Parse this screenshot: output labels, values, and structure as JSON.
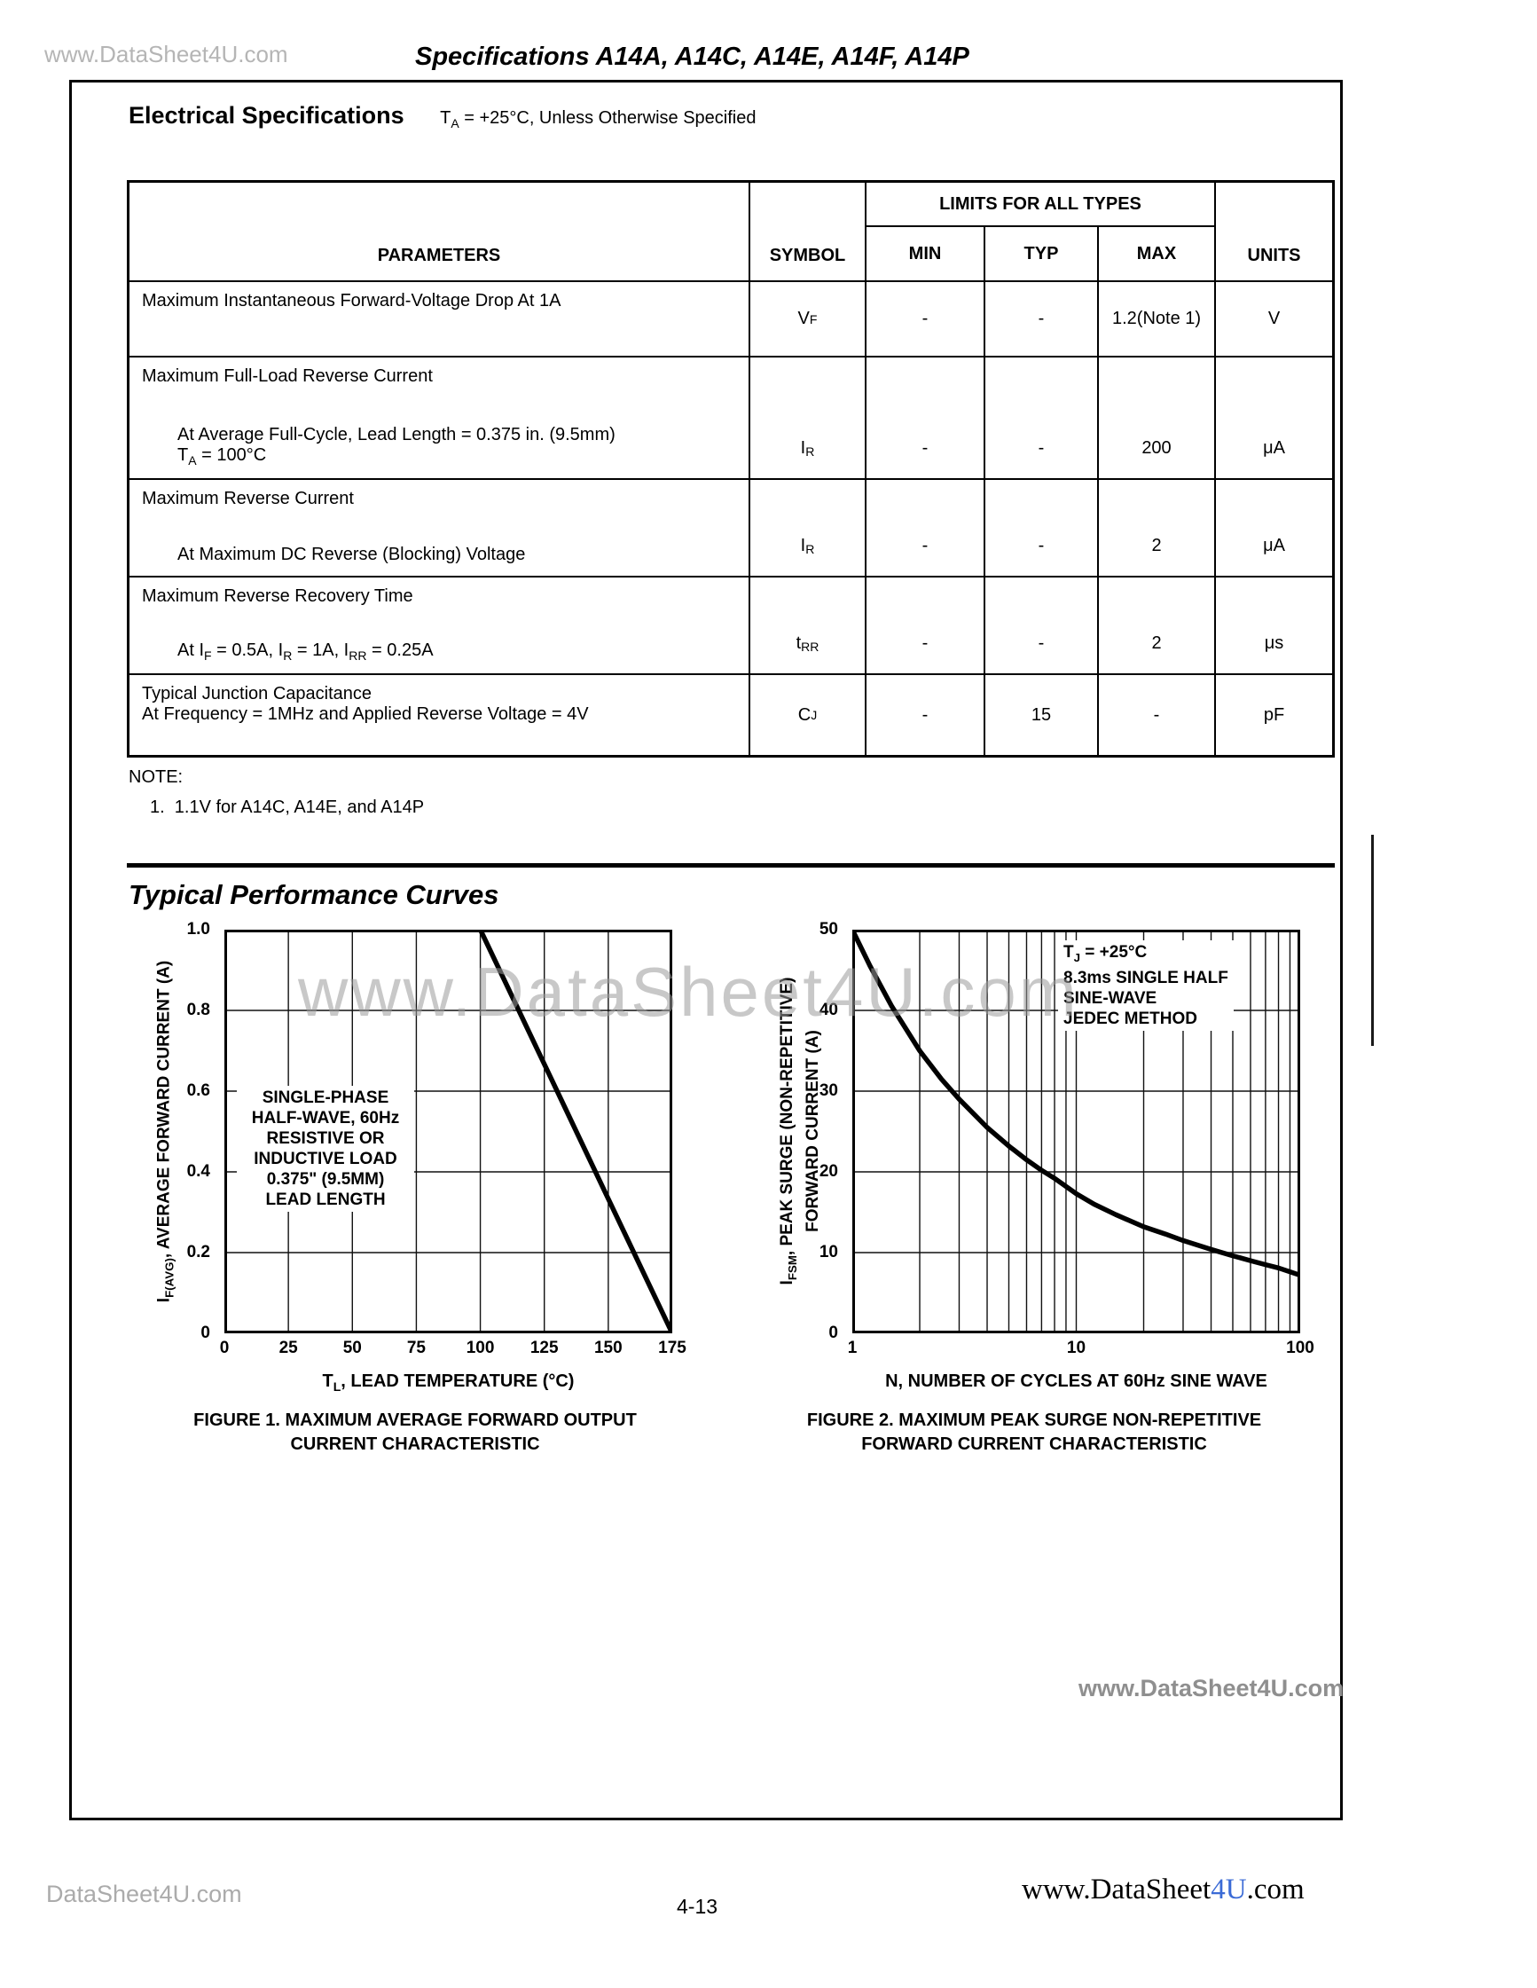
{
  "page": {
    "watermark_top_left": "www.DataSheet4U.com",
    "title": "Specifications A14A, A14C, A14E, A14F, A14P",
    "watermark_center": "www.DataSheet4U.com",
    "watermark_inner": "www.DataSheet4U.com",
    "footer_left": "DataSheet4U.com",
    "footer_right_prefix": "www.DataSheet",
    "footer_right_accent": "4U",
    "footer_right_suffix": ".com",
    "page_number": "4-13"
  },
  "electrical": {
    "heading": "Electrical Specifications",
    "condition": "T~A~ = +25°C, Unless Otherwise Specified",
    "table": {
      "col_parameters": "PARAMETERS",
      "col_symbol": "SYMBOL",
      "col_limits": "LIMITS FOR ALL TYPES",
      "col_min": "MIN",
      "col_typ": "TYP",
      "col_max": "MAX",
      "col_units": "UNITS",
      "rows": [
        {
          "title": "Maximum Instantaneous Forward-Voltage Drop At 1A",
          "subtitle": "",
          "symbol": "V~F~",
          "min": "-",
          "typ": "-",
          "max": "1.2\n(Note 1)",
          "units": "V"
        },
        {
          "title": "Maximum Full-Load Reverse Current",
          "subtitle": "At Average Full-Cycle, Lead Length = 0.375 in. (9.5mm)\nT~A~ = 100°C",
          "symbol": "I~R~",
          "min": "-",
          "typ": "-",
          "max": "200",
          "units": "μA"
        },
        {
          "title": "Maximum Reverse Current",
          "subtitle": "At Maximum DC Reverse (Blocking) Voltage",
          "symbol": "I~R~",
          "min": "-",
          "typ": "-",
          "max": "2",
          "units": "μA"
        },
        {
          "title": "Maximum Reverse Recovery Time",
          "subtitle": "At I~F~ = 0.5A, I~R~ = 1A, I~RR~ = 0.25A",
          "symbol": "t~RR~",
          "min": "-",
          "typ": "-",
          "max": "2",
          "units": "μs"
        },
        {
          "title": "Typical Junction Capacitance\nAt Frequency = 1MHz and Applied Reverse Voltage = 4V",
          "subtitle": "",
          "symbol": "C~J~",
          "min": "-",
          "typ": "15",
          "max": "-",
          "units": "pF"
        }
      ]
    },
    "note_label": "NOTE:",
    "note_1": "1.  1.1V for A14C, A14E, and A14P"
  },
  "curves": {
    "heading": "Typical Performance Curves"
  },
  "chart_data": [
    {
      "type": "line",
      "caption": "FIGURE 1.  MAXIMUM AVERAGE FORWARD OUTPUT\nCURRENT CHARACTERISTIC",
      "xlabel": "T~L~, LEAD TEMPERATURE (°C)",
      "ylabel": "I~F(AVG)~, AVERAGE FORWARD CURRENT (A)",
      "annotation": "SINGLE-PHASE\nHALF-WAVE, 60Hz\nRESISTIVE OR\nINDUCTIVE LOAD\n0.375\" (9.5MM)\nLEAD LENGTH",
      "xscale": "linear",
      "xlim": [
        0,
        175
      ],
      "ylim": [
        0,
        1.0
      ],
      "xticks": [
        0,
        25,
        50,
        75,
        100,
        125,
        150,
        175
      ],
      "xtick_labels": [
        "0",
        "25",
        "50",
        "75",
        "100",
        "125",
        "150",
        "175"
      ],
      "yticks": [
        0,
        0.2,
        0.4,
        0.6,
        0.8,
        1.0
      ],
      "ytick_labels": [
        "0",
        "0.2",
        "0.4",
        "0.6",
        "0.8",
        "1.0"
      ],
      "xgrid": [
        25,
        50,
        75,
        100,
        125,
        150
      ],
      "ygrid": [
        0.2,
        0.4,
        0.6,
        0.8
      ],
      "grid": true,
      "points": [
        [
          0,
          1.0
        ],
        [
          100,
          1.0
        ],
        [
          125,
          0.667
        ],
        [
          150,
          0.333
        ],
        [
          175,
          0
        ]
      ]
    },
    {
      "type": "line",
      "caption": "FIGURE 2.  MAXIMUM PEAK SURGE NON-REPETITIVE\nFORWARD CURRENT CHARACTERISTIC",
      "xlabel": "N, NUMBER OF CYCLES AT 60Hz SINE WAVE",
      "ylabel": "I~FSM~, PEAK SURGE (NON-REPETITIVE)\nFORWARD CURRENT (A)",
      "annotation": "T~J~ = +25°C\n8.3ms SINGLE HALF\nSINE-WAVE\nJEDEC METHOD",
      "xscale": "log",
      "xlim": [
        1,
        100
      ],
      "ylim": [
        0,
        50
      ],
      "xticks": [
        1,
        10,
        100
      ],
      "xtick_labels": [
        "1",
        "10",
        "100"
      ],
      "yticks": [
        0,
        10,
        20,
        30,
        40,
        50
      ],
      "ytick_labels": [
        "0",
        "10",
        "20",
        "30",
        "40",
        "50"
      ],
      "xgrid": [
        2,
        3,
        4,
        5,
        6,
        7,
        8,
        9,
        10,
        20,
        30,
        40,
        50,
        60,
        70,
        80,
        90
      ],
      "ygrid": [
        10,
        20,
        30,
        40
      ],
      "grid": true,
      "points": [
        [
          1,
          50
        ],
        [
          1.2,
          45.5
        ],
        [
          1.5,
          40.5
        ],
        [
          2,
          35
        ],
        [
          2.5,
          31.5
        ],
        [
          3,
          29
        ],
        [
          4,
          25.5
        ],
        [
          5,
          23.2
        ],
        [
          6,
          21.5
        ],
        [
          7,
          20.2
        ],
        [
          8,
          19.2
        ],
        [
          10,
          17.3
        ],
        [
          12,
          16
        ],
        [
          15,
          14.7
        ],
        [
          20,
          13.2
        ],
        [
          25,
          12.3
        ],
        [
          30,
          11.5
        ],
        [
          40,
          10.4
        ],
        [
          50,
          9.6
        ],
        [
          60,
          9.0
        ],
        [
          70,
          8.5
        ],
        [
          80,
          8.1
        ],
        [
          100,
          7.2
        ]
      ]
    }
  ]
}
